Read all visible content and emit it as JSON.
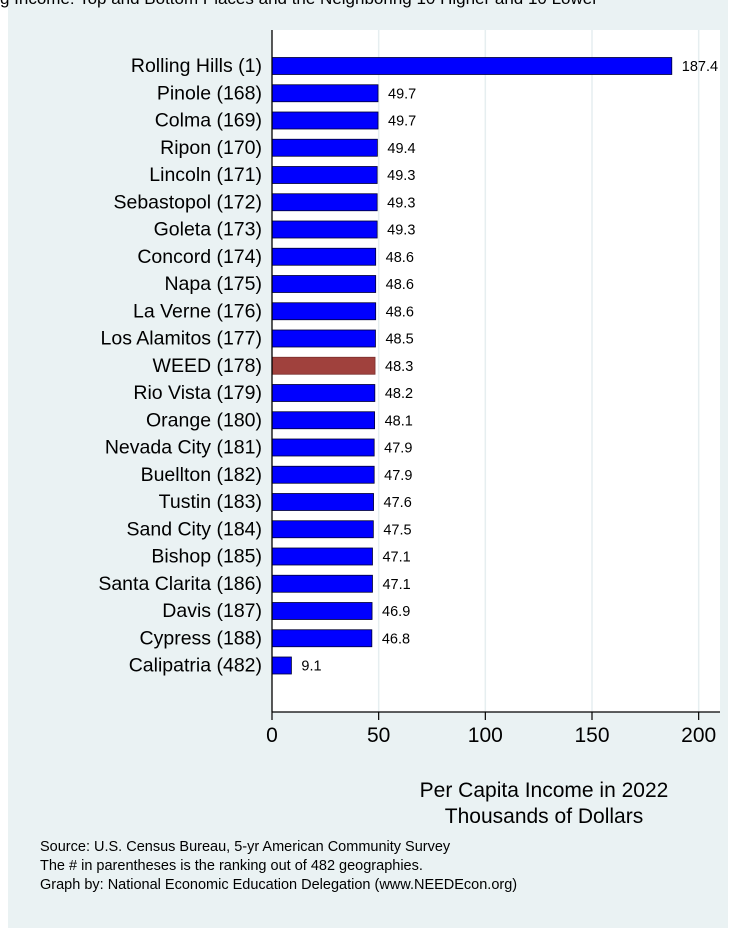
{
  "header_fragment": "g Income: Top and Bottom Places and the Neighboring 10 Higher and 10 Lower",
  "chart_data": {
    "type": "bar",
    "orientation": "horizontal",
    "categories": [
      "Rolling Hills  (1)",
      "Pinole (168)",
      "Colma (169)",
      "Ripon (170)",
      "Lincoln (171)",
      "Sebastopol (172)",
      "Goleta (173)",
      "Concord (174)",
      "Napa (175)",
      "La Verne (176)",
      "Los Alamitos (177)",
      "WEED (178)",
      "Rio Vista (179)",
      "Orange (180)",
      "Nevada City (181)",
      "Buellton (182)",
      "Tustin (183)",
      "Sand City (184)",
      "Bishop (185)",
      "Santa Clarita (186)",
      "Davis (187)",
      "Cypress (188)",
      "Calipatria (482)"
    ],
    "values": [
      187.4,
      49.7,
      49.7,
      49.4,
      49.3,
      49.3,
      49.3,
      48.6,
      48.6,
      48.6,
      48.5,
      48.3,
      48.2,
      48.1,
      47.9,
      47.9,
      47.6,
      47.5,
      47.1,
      47.1,
      46.9,
      46.8,
      9.1
    ],
    "value_labels": [
      "187.4",
      "49.7",
      "49.7",
      "49.4",
      "49.3",
      "49.3",
      "49.3",
      "48.6",
      "48.6",
      "48.6",
      "48.5",
      "48.3",
      "48.2",
      "48.1",
      "47.9",
      "47.9",
      "47.6",
      "47.5",
      "47.1",
      "47.1",
      "46.9",
      "46.8",
      "9.1"
    ],
    "highlight": "WEED (178)",
    "xlim": [
      0,
      210
    ],
    "xticks": [
      0,
      50,
      100,
      150,
      200
    ],
    "xlabel_line1": "Per Capita Income in 2022",
    "xlabel_line2": "Thousands of Dollars",
    "grid": true,
    "colors": {
      "bar": "#0000ff",
      "highlight": "#a0413d",
      "background": "#eaf2f3",
      "plot_background": "#ffffff",
      "gridline": "#e6eef0"
    }
  },
  "notes": [
    "Source: U.S. Census Bureau, 5-yr American Community Survey",
    "The # in parentheses is the ranking out of 482 geographies.",
    "Graph by: National Economic Education Delegation (www.NEEDEcon.org)"
  ]
}
